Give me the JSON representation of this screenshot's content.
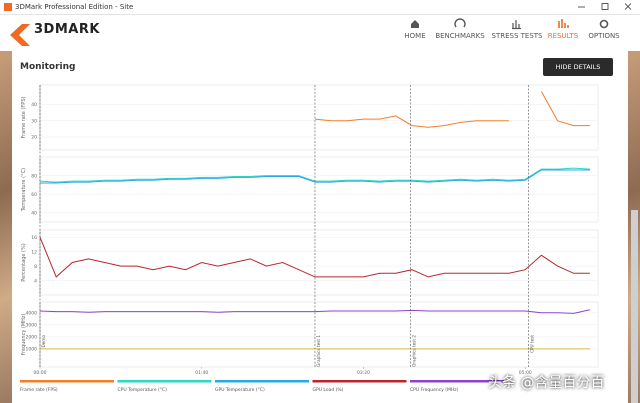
{
  "window": {
    "title": "3DMark Professional Edition - Site"
  },
  "header": {
    "logo": "3DMARK",
    "nav": [
      "HOME",
      "BENCHMARKS",
      "STRESS TESTS",
      "RESULTS",
      "OPTIONS"
    ],
    "active": 3
  },
  "section": {
    "title": "Monitoring",
    "button": "HIDE DETAILS"
  },
  "watermark": "头条 @含量百分百",
  "chart_data": [
    {
      "type": "line",
      "ylabel": "Frame rate (FPS)",
      "x": [
        0,
        10,
        20,
        30,
        40,
        50,
        60,
        70,
        80,
        90,
        100,
        110,
        120,
        130,
        140,
        150,
        160,
        170,
        180,
        190,
        200,
        210,
        220,
        230,
        240,
        250,
        260,
        270,
        280,
        290,
        300,
        310,
        320,
        330,
        340
      ],
      "xlim": [
        0,
        345
      ],
      "ylim": [
        12,
        52
      ],
      "yticks": [
        20,
        30,
        40
      ],
      "series": [
        {
          "name": "Frame rate (FPS)",
          "color": "#f07f2a",
          "values": [
            null,
            null,
            null,
            null,
            null,
            null,
            null,
            null,
            null,
            null,
            null,
            null,
            null,
            null,
            null,
            null,
            null,
            31,
            30,
            30,
            31,
            31,
            33,
            27,
            26,
            27,
            29,
            30,
            30,
            30,
            null,
            48,
            30,
            27,
            27
          ]
        }
      ]
    },
    {
      "type": "line",
      "ylabel": "Temperature (°C)",
      "x": [
        0,
        10,
        20,
        30,
        40,
        50,
        60,
        70,
        80,
        90,
        100,
        110,
        120,
        130,
        140,
        150,
        160,
        170,
        180,
        190,
        200,
        210,
        220,
        230,
        240,
        250,
        260,
        270,
        280,
        290,
        300,
        310,
        320,
        330,
        340
      ],
      "xlim": [
        0,
        345
      ],
      "ylim": [
        30,
        100
      ],
      "yticks": [
        40,
        60,
        80
      ],
      "series": [
        {
          "name": "CPU Temperature (°C)",
          "color": "#2fd6c6",
          "values": [
            74,
            73,
            74,
            74,
            75,
            75,
            76,
            76,
            77,
            77,
            78,
            78,
            79,
            79,
            80,
            80,
            80,
            74,
            74,
            75,
            75,
            74,
            75,
            75,
            74,
            75,
            76,
            75,
            76,
            75,
            76,
            87,
            87,
            88,
            87
          ]
        },
        {
          "name": "GPU Temperature (°C)",
          "color": "#29a9e0",
          "values": [
            72,
            72,
            73,
            73,
            74,
            74,
            75,
            75,
            76,
            76,
            77,
            77,
            78,
            78,
            79,
            79,
            79,
            73,
            73,
            74,
            74,
            73,
            74,
            74,
            73,
            74,
            75,
            74,
            75,
            74,
            75,
            86,
            86,
            86,
            86
          ]
        }
      ]
    },
    {
      "type": "line",
      "ylabel": "Percentage (%)",
      "x": [
        0,
        10,
        20,
        30,
        40,
        50,
        60,
        70,
        80,
        90,
        100,
        110,
        120,
        130,
        140,
        150,
        160,
        170,
        180,
        190,
        200,
        210,
        220,
        230,
        240,
        250,
        260,
        270,
        280,
        290,
        300,
        310,
        320,
        330,
        340
      ],
      "xlim": [
        0,
        345
      ],
      "ylim": [
        0,
        18
      ],
      "yticks": [
        4,
        8,
        12,
        16
      ],
      "series": [
        {
          "name": "GPU Load (%)",
          "color": "#b8262e",
          "values": [
            16,
            5,
            9,
            10,
            9,
            8,
            8,
            7,
            8,
            7,
            9,
            8,
            9,
            10,
            8,
            9,
            7,
            5,
            5,
            5,
            5,
            6,
            6,
            7,
            5,
            6,
            6,
            6,
            6,
            6,
            7,
            11,
            8,
            6,
            6
          ]
        }
      ]
    },
    {
      "type": "line",
      "ylabel": "Frequency (MHz)",
      "x": [
        0,
        10,
        20,
        30,
        40,
        50,
        60,
        70,
        80,
        90,
        100,
        110,
        120,
        130,
        140,
        150,
        160,
        170,
        180,
        190,
        200,
        210,
        220,
        230,
        240,
        250,
        260,
        270,
        280,
        290,
        300,
        310,
        320,
        330,
        340
      ],
      "xlim": [
        0,
        345
      ],
      "ylim": [
        -500,
        4900
      ],
      "yticks": [
        1000,
        2000,
        3000,
        4000
      ],
      "xticks": [
        {
          "value": 0,
          "label": "00:00"
        },
        {
          "value": 100,
          "label": "01:40"
        },
        {
          "value": 200,
          "label": "03:20"
        },
        {
          "value": 300,
          "label": "05:00"
        }
      ],
      "markers": [
        {
          "x": 0,
          "label": "Demo"
        },
        {
          "x": 170,
          "label": "Graphics test 1"
        },
        {
          "x": 229,
          "label": "Graphics test 2"
        },
        {
          "x": 302,
          "label": "CPU test"
        }
      ],
      "series": [
        {
          "name": "CPU Frequency (MHz)",
          "color": "#8e44c9",
          "values": [
            4150,
            4100,
            4100,
            4050,
            4100,
            4100,
            4100,
            4100,
            4100,
            4100,
            4100,
            4050,
            4100,
            4100,
            4100,
            4100,
            4100,
            4100,
            4150,
            4150,
            4150,
            4150,
            4150,
            4200,
            4150,
            4150,
            4150,
            4150,
            4150,
            4150,
            4150,
            4000,
            4000,
            3950,
            4250
          ]
        },
        {
          "color": "#d9b93a",
          "values": [
            1000,
            1000,
            1000,
            1000,
            1000,
            1000,
            1000,
            1000,
            1000,
            1000,
            1000,
            1000,
            1000,
            1000,
            1000,
            1000,
            1000,
            1000,
            1000,
            1000,
            1000,
            1000,
            1000,
            1000,
            1000,
            1000,
            1000,
            1000,
            1000,
            1000,
            1000,
            1000,
            1000,
            1000,
            1000
          ]
        }
      ]
    }
  ]
}
